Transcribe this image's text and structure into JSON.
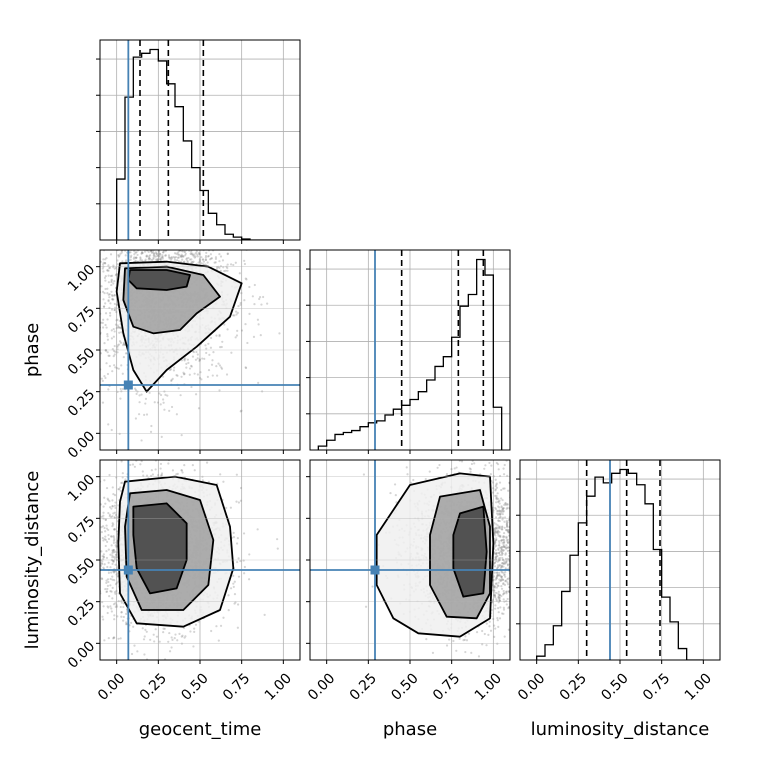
{
  "colors": {
    "truth": "#4682b4",
    "hist": "#000000",
    "quantile": "#000000",
    "grid": "#b0b0b0",
    "scatter": "#888888"
  },
  "chart_data": {
    "type": "corner",
    "parameters": [
      "geocent_time",
      "phase",
      "luminosity_distance"
    ],
    "axis_labels": {
      "geocent_time": "geocent_time",
      "phase": "phase",
      "luminosity_distance": "luminosity_distance"
    },
    "ticks": [
      0.0,
      0.25,
      0.5,
      0.75,
      1.0
    ],
    "tick_labels": [
      "0.00",
      "0.25",
      "0.50",
      "0.75",
      "1.00"
    ],
    "xlim": [
      -0.1,
      1.1
    ],
    "grid": true,
    "truths": {
      "geocent_time": 0.07,
      "phase": 0.29,
      "luminosity_distance": 0.44
    },
    "quantiles": {
      "geocent_time": [
        0.14,
        0.31,
        0.52
      ],
      "phase": [
        0.45,
        0.79,
        0.94
      ],
      "luminosity_distance": [
        0.3,
        0.54,
        0.74
      ]
    },
    "histograms": {
      "geocent_time": {
        "bin_start": 0.0,
        "bin_width": 0.05,
        "counts": [
          0.32,
          0.75,
          0.96,
          0.98,
          1.0,
          0.94,
          0.82,
          0.7,
          0.52,
          0.38,
          0.26,
          0.14,
          0.08,
          0.03,
          0.015,
          0.005,
          0.0,
          0.0,
          0.0,
          0.0
        ]
      },
      "phase": {
        "bin_start": -0.05,
        "bin_width": 0.05,
        "counts": [
          0.02,
          0.05,
          0.08,
          0.09,
          0.1,
          0.12,
          0.14,
          0.15,
          0.18,
          0.21,
          0.23,
          0.26,
          0.3,
          0.36,
          0.43,
          0.48,
          0.58,
          0.74,
          0.8,
          0.98,
          0.9,
          0.22
        ]
      },
      "luminosity_distance": {
        "bin_start": 0.0,
        "bin_width": 0.05,
        "counts": [
          0.02,
          0.08,
          0.18,
          0.36,
          0.55,
          0.72,
          0.86,
          0.96,
          0.93,
          0.98,
          1.0,
          0.98,
          0.92,
          0.82,
          0.58,
          0.33,
          0.2,
          0.06,
          0.0,
          0.0
        ]
      }
    },
    "density_2d": [
      {
        "x": "geocent_time",
        "y": "phase",
        "center": [
          0.25,
          0.9
        ],
        "spread": [
          0.22,
          0.3
        ],
        "points": 2600,
        "contours": [
          [
            [
              0.02,
              1.02
            ],
            [
              0.3,
              1.03
            ],
            [
              0.55,
              1.0
            ],
            [
              0.75,
              0.9
            ],
            [
              0.68,
              0.7
            ],
            [
              0.48,
              0.52
            ],
            [
              0.3,
              0.38
            ],
            [
              0.18,
              0.25
            ],
            [
              0.1,
              0.38
            ],
            [
              0.04,
              0.6
            ],
            [
              0.0,
              0.85
            ]
          ],
          [
            [
              0.05,
              0.99
            ],
            [
              0.3,
              1.0
            ],
            [
              0.52,
              0.95
            ],
            [
              0.62,
              0.82
            ],
            [
              0.48,
              0.72
            ],
            [
              0.38,
              0.62
            ],
            [
              0.22,
              0.6
            ],
            [
              0.1,
              0.64
            ],
            [
              0.04,
              0.8
            ]
          ],
          [
            [
              0.08,
              0.98
            ],
            [
              0.3,
              0.98
            ],
            [
              0.44,
              0.95
            ],
            [
              0.42,
              0.88
            ],
            [
              0.3,
              0.86
            ],
            [
              0.12,
              0.87
            ],
            [
              0.07,
              0.92
            ]
          ]
        ]
      },
      {
        "x": "geocent_time",
        "y": "luminosity_distance",
        "center": [
          0.25,
          0.55
        ],
        "spread": [
          0.2,
          0.22
        ],
        "points": 2600,
        "contours": [
          [
            [
              0.05,
              0.97
            ],
            [
              0.35,
              1.0
            ],
            [
              0.6,
              0.95
            ],
            [
              0.68,
              0.7
            ],
            [
              0.7,
              0.45
            ],
            [
              0.62,
              0.2
            ],
            [
              0.4,
              0.1
            ],
            [
              0.12,
              0.12
            ],
            [
              0.02,
              0.3
            ],
            [
              0.01,
              0.6
            ],
            [
              0.02,
              0.85
            ]
          ],
          [
            [
              0.08,
              0.9
            ],
            [
              0.3,
              0.92
            ],
            [
              0.5,
              0.86
            ],
            [
              0.58,
              0.62
            ],
            [
              0.55,
              0.35
            ],
            [
              0.4,
              0.2
            ],
            [
              0.15,
              0.2
            ],
            [
              0.06,
              0.4
            ],
            [
              0.05,
              0.7
            ]
          ],
          [
            [
              0.1,
              0.82
            ],
            [
              0.3,
              0.84
            ],
            [
              0.42,
              0.72
            ],
            [
              0.42,
              0.5
            ],
            [
              0.36,
              0.33
            ],
            [
              0.2,
              0.3
            ],
            [
              0.12,
              0.45
            ],
            [
              0.1,
              0.65
            ]
          ]
        ]
      },
      {
        "x": "phase",
        "y": "luminosity_distance",
        "center": [
          0.9,
          0.55
        ],
        "spread": [
          0.2,
          0.22
        ],
        "points": 2600,
        "contours": [
          [
            [
              0.3,
              0.65
            ],
            [
              0.5,
              0.95
            ],
            [
              0.8,
              1.02
            ],
            [
              0.98,
              1.0
            ],
            [
              1.0,
              0.6
            ],
            [
              0.98,
              0.15
            ],
            [
              0.8,
              0.04
            ],
            [
              0.55,
              0.06
            ],
            [
              0.4,
              0.15
            ],
            [
              0.3,
              0.35
            ]
          ],
          [
            [
              0.68,
              0.88
            ],
            [
              0.92,
              0.92
            ],
            [
              0.98,
              0.7
            ],
            [
              0.98,
              0.3
            ],
            [
              0.9,
              0.15
            ],
            [
              0.72,
              0.16
            ],
            [
              0.62,
              0.35
            ],
            [
              0.62,
              0.65
            ]
          ],
          [
            [
              0.8,
              0.78
            ],
            [
              0.94,
              0.82
            ],
            [
              0.96,
              0.55
            ],
            [
              0.94,
              0.3
            ],
            [
              0.82,
              0.28
            ],
            [
              0.76,
              0.45
            ],
            [
              0.76,
              0.65
            ]
          ]
        ]
      }
    ]
  }
}
